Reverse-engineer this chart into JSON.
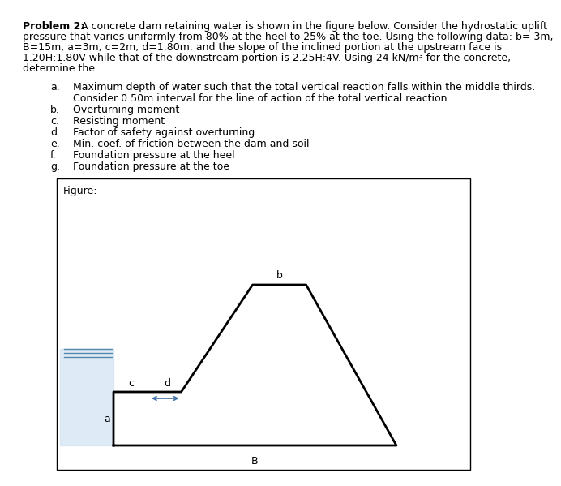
{
  "title_bold": "Problem 2:",
  "title_rest": " A concrete dam retaining water is shown in the figure below. Consider the hydrostatic uplift pressure that varies uniformly from 80% at the heel to 25% at the toe. Using the following data: b= 3m, B=15m, a=3m, c=2m, d=1.80m, and the slope of the inclined portion at the upstream face is 1.20H:1.80V while that of the downstream portion is 2.25H:4V. Using 24 kN/m³ for the concrete, determine the",
  "items_letters": [
    "a.",
    "b.",
    "c.",
    "d.",
    "e.",
    "f.",
    "g."
  ],
  "items_text": [
    "Maximum depth of water such that the total vertical reaction falls within the middle thirds.",
    "Overturning moment",
    "Resisting moment",
    "Factor of safety against overturning",
    "Min. coef. of friction between the dam and soil",
    "Foundation pressure at the heel",
    "Foundation pressure at the toe"
  ],
  "item_a_line2": "Consider 0.50m interval for the line of action of the total vertical reaction.",
  "figure_label": "Figure:",
  "label_b": "b",
  "label_a": "a",
  "label_c": "c",
  "label_d": "d",
  "label_B": "B",
  "bg_color": "#ffffff",
  "dam_lw": 2.0,
  "water_fill_color": "#c8dff0",
  "water_line_color": "#5588aa",
  "arrow_color": "#4472aa",
  "font_size": 9.0
}
